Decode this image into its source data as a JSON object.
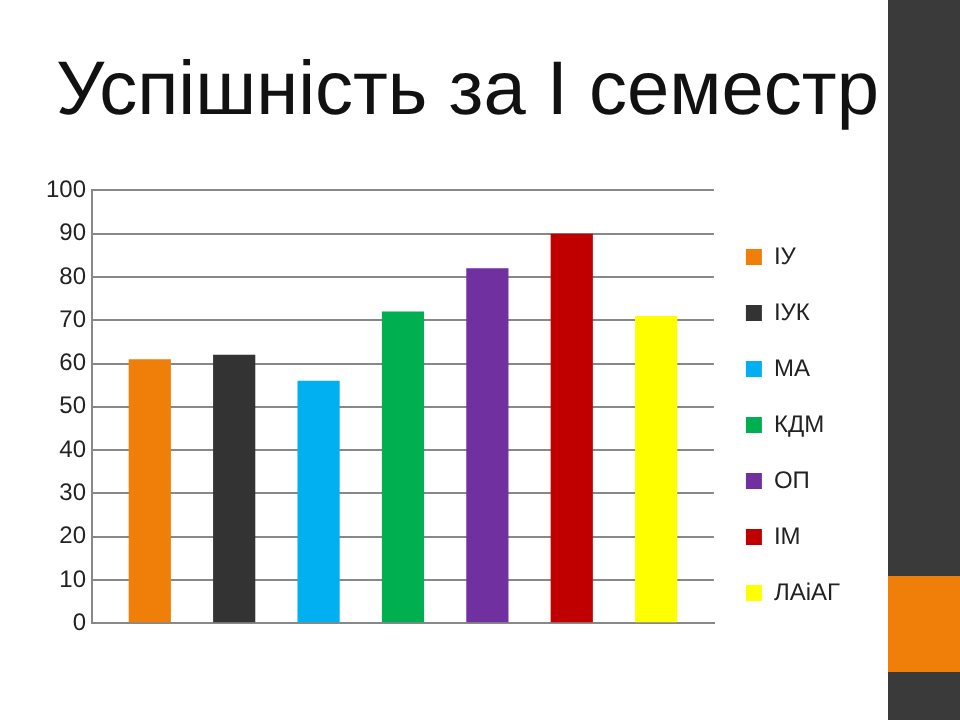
{
  "chart_data": {
    "type": "bar",
    "title": "Успішність за I семестр",
    "categories": [
      null
    ],
    "series": [
      {
        "name": "ІУ",
        "color": "#f07f09",
        "values": [
          61
        ]
      },
      {
        "name": "ІУК",
        "color": "#333333",
        "values": [
          62
        ]
      },
      {
        "name": "МА",
        "color": "#00b0f0",
        "values": [
          56
        ]
      },
      {
        "name": "КДМ",
        "color": "#00b050",
        "values": [
          72
        ]
      },
      {
        "name": "ОП",
        "color": "#7030a0",
        "values": [
          82
        ]
      },
      {
        "name": "ІМ",
        "color": "#c00000",
        "values": [
          90
        ]
      },
      {
        "name": "ЛАіАГ",
        "color": "#ffff00",
        "values": [
          71
        ]
      }
    ],
    "ylim": [
      0,
      100
    ],
    "yticks": [
      0,
      10,
      20,
      30,
      40,
      50,
      60,
      70,
      80,
      90,
      100
    ],
    "grid": "y",
    "legend": "right"
  }
}
